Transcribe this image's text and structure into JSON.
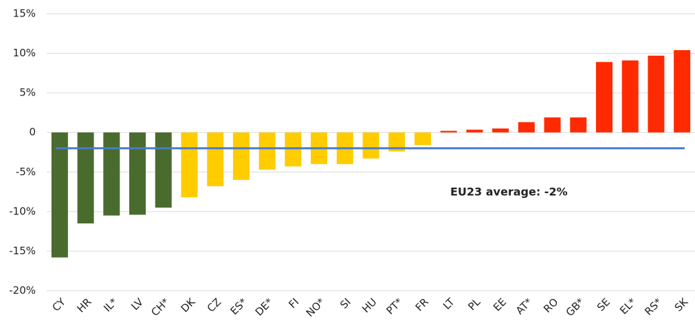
{
  "chart_data": {
    "type": "bar",
    "categories": [
      "CY",
      "HR",
      "IL*",
      "LV",
      "CH*",
      "DK",
      "CZ",
      "ES*",
      "DE*",
      "FI",
      "NO*",
      "SI",
      "HU",
      "PT*",
      "FR",
      "LT",
      "PL",
      "EE",
      "AT*",
      "RO",
      "GB*",
      "SE",
      "EL*",
      "RS*",
      "SK"
    ],
    "values": [
      -15.8,
      -11.5,
      -10.5,
      -10.4,
      -9.5,
      -8.2,
      -6.8,
      -6.0,
      -4.7,
      -4.3,
      -4.0,
      -4.0,
      -3.3,
      -2.4,
      -1.6,
      0.2,
      0.35,
      0.5,
      1.3,
      1.9,
      1.9,
      8.9,
      9.1,
      9.7,
      10.4
    ],
    "colors": [
      "#4a6b2e",
      "#4a6b2e",
      "#4a6b2e",
      "#4a6b2e",
      "#4a6b2e",
      "#ffcc00",
      "#ffcc00",
      "#ffcc00",
      "#ffcc00",
      "#ffcc00",
      "#ffcc00",
      "#ffcc00",
      "#ffcc00",
      "#ffcc00",
      "#ffcc00",
      "#ff2a00",
      "#ff2a00",
      "#ff2a00",
      "#ff2a00",
      "#ff2a00",
      "#ff2a00",
      "#ff2a00",
      "#ff2a00",
      "#ff2a00",
      "#ff2a00"
    ],
    "ylim": [
      -20,
      15
    ],
    "yticks": [
      {
        "value": -20,
        "label": "-20%"
      },
      {
        "value": -15,
        "label": "-15%"
      },
      {
        "value": -10,
        "label": "-10%"
      },
      {
        "value": -5,
        "label": "-5%"
      },
      0,
      {
        "value": 5,
        "label": "5%"
      },
      {
        "value": 10,
        "label": "10%"
      },
      {
        "value": 15,
        "label": "15%"
      }
    ],
    "grid": true,
    "reference_line": {
      "value": -2,
      "label": "EU23 average: -2%",
      "color": "#4a7bd0"
    }
  }
}
